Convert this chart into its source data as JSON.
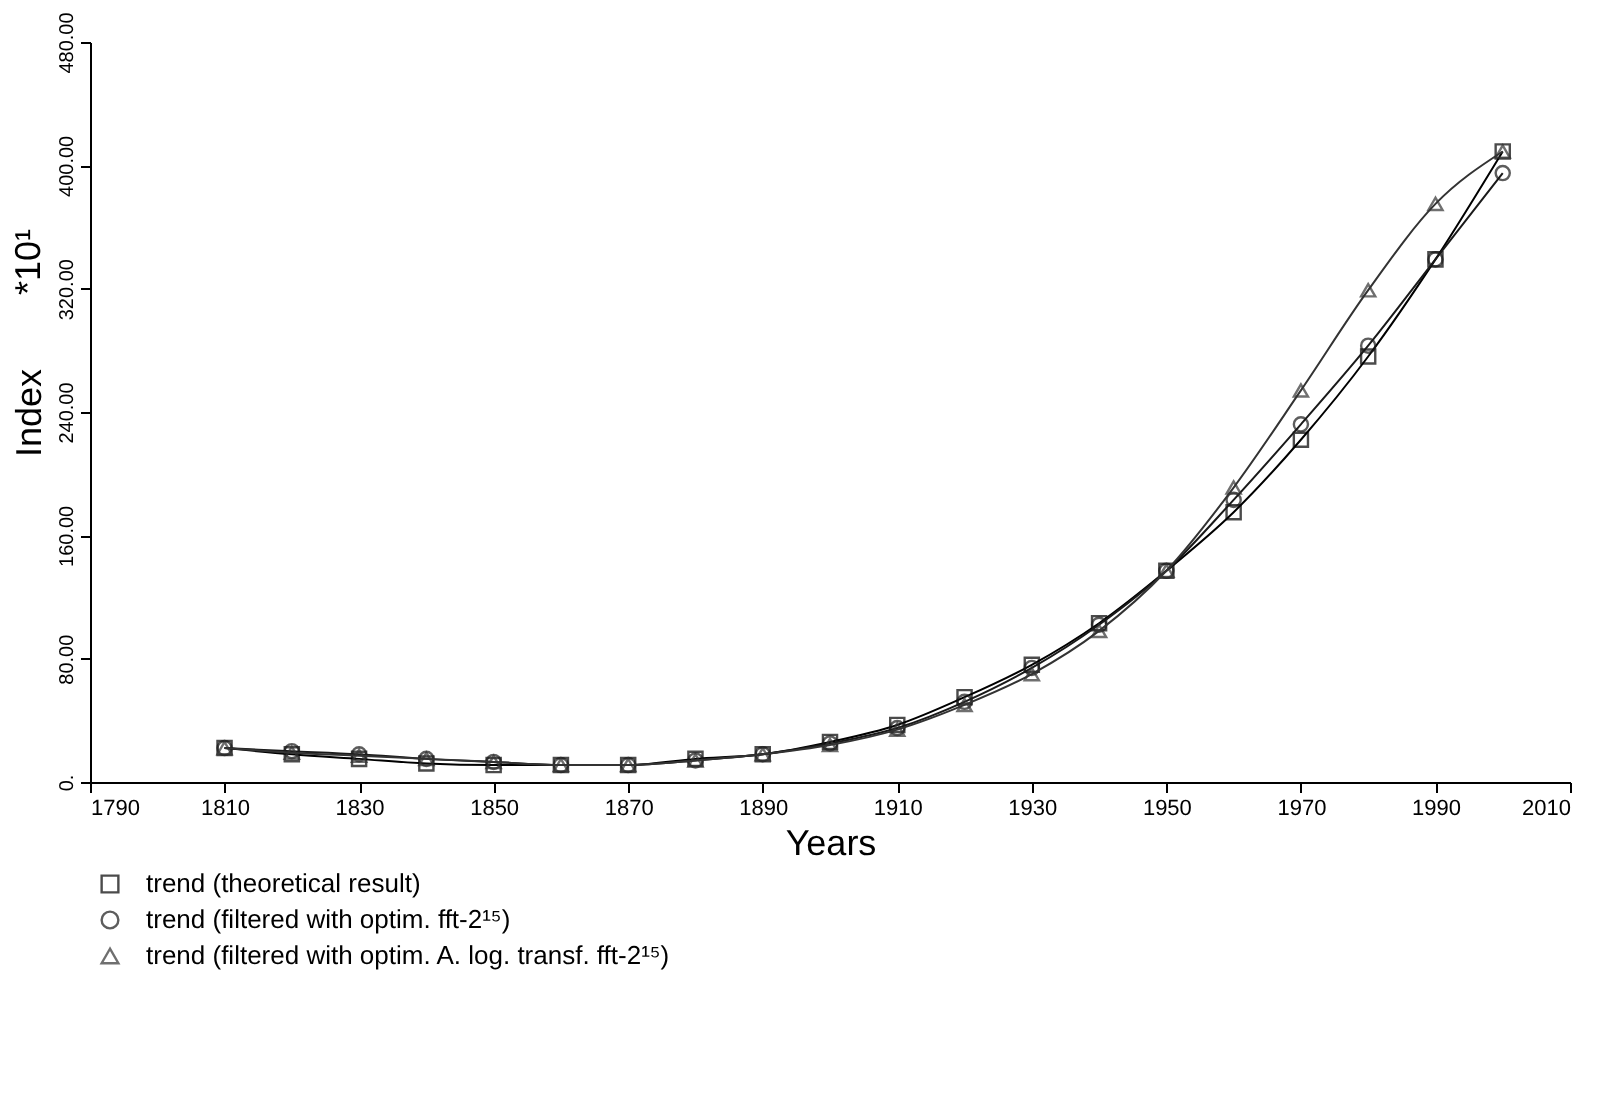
{
  "chart_data": {
    "type": "line",
    "xlabel": "Years",
    "ylabel": "Index",
    "annotations": [
      "*10¹"
    ],
    "x": [
      1810,
      1820,
      1830,
      1840,
      1850,
      1860,
      1870,
      1880,
      1890,
      1900,
      1910,
      1920,
      1930,
      1940,
      1950,
      1960,
      1970,
      1980,
      1990,
      2000
    ],
    "series": [
      {
        "name": "trend (theoretical result)",
        "color": "#000000",
        "marker": "square",
        "values": [
          22,
          18,
          15,
          12,
          11,
          11,
          11,
          15,
          18,
          26,
          37,
          55,
          76,
          103,
          137,
          175,
          222,
          276,
          339,
          409
        ]
      },
      {
        "name": "trend (filtered with optim. fft-2¹⁵)",
        "color": "#1a1a1a",
        "marker": "circle",
        "values": [
          22,
          20,
          18,
          15,
          13,
          11,
          11,
          14,
          18,
          25,
          35,
          52,
          74,
          102,
          137,
          183,
          232,
          283,
          339,
          395
        ]
      },
      {
        "name": "trend (filtered with optim. A. log. transf. fft-2¹⁵)",
        "color": "#333333",
        "marker": "triangle",
        "values": [
          22,
          19,
          17,
          15,
          13,
          11,
          11,
          14,
          18,
          24,
          34,
          50,
          70,
          98,
          137,
          191,
          254,
          319,
          375,
          409
        ]
      }
    ],
    "xlim": [
      1790,
      2010
    ],
    "xticks": [
      1790,
      1810,
      1830,
      1850,
      1870,
      1890,
      1910,
      1930,
      1950,
      1970,
      1990,
      2010
    ],
    "ylim": [
      0,
      480
    ],
    "yticks": [
      {
        "value": 0,
        "label": "0."
      },
      {
        "value": 80,
        "label": "80.00"
      },
      {
        "value": 160,
        "label": "160.00"
      },
      {
        "value": 240,
        "label": "240.00"
      },
      {
        "value": 320,
        "label": "320.00"
      },
      {
        "value": 400,
        "label": "400.00"
      },
      {
        "value": 480,
        "label": "480.00"
      }
    ],
    "legend": "bottom left",
    "grid": false,
    "line_style": "solid"
  }
}
